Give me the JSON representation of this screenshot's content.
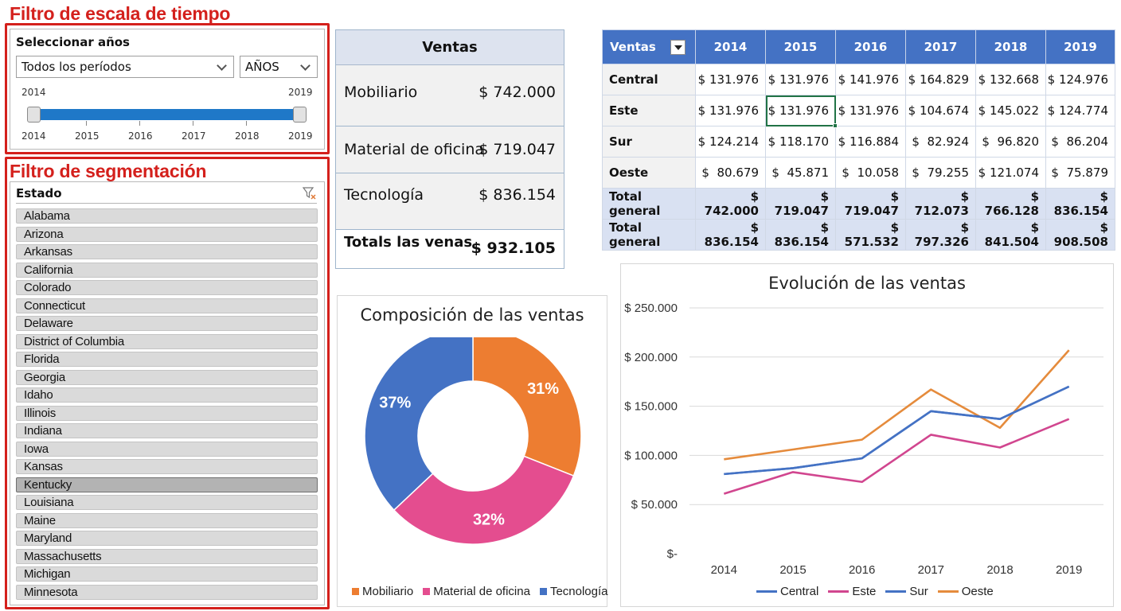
{
  "timeline": {
    "section_title": "Filtro de escala de tiempo",
    "label": "Seleccionar años",
    "period_select": "Todos los períodos",
    "unit_select": "AÑOS",
    "range_start": "2014",
    "range_end": "2019",
    "years": [
      "2014",
      "2015",
      "2016",
      "2017",
      "2018",
      "2019"
    ]
  },
  "slicer": {
    "section_title": "Filtro de segmentación",
    "header": "Estado",
    "items": [
      "Alabama",
      "Arizona",
      "Arkansas",
      "California",
      "Colorado",
      "Connecticut",
      "Delaware",
      "District of Columbia",
      "Florida",
      "Georgia",
      "Idaho",
      "Illinois",
      "Indiana",
      "Iowa",
      "Kansas",
      "Kentucky",
      "Louisiana",
      "Maine",
      "Maryland",
      "Massachusetts",
      "Michigan",
      "Minnesota"
    ],
    "selected": "Kentucky"
  },
  "ventas_panel": {
    "title": "Ventas",
    "rows": [
      {
        "label": "Mobiliario",
        "value": "$ 742.000"
      },
      {
        "label": "Material de oficina",
        "value": "$ 719.047"
      },
      {
        "label": "Tecnología",
        "value": "$ 836.154"
      }
    ],
    "total_label": "Totals las venas",
    "total_value": "$ 932.105"
  },
  "pivot": {
    "corner": "Ventas",
    "years": [
      "2014",
      "2015",
      "2016",
      "2017",
      "2018",
      "2019"
    ],
    "rows": [
      {
        "label": "Central",
        "values": [
          "$ 131.976",
          "$ 131.976",
          "$ 141.976",
          "$ 164.829",
          "$ 132.668",
          "$ 124.976"
        ]
      },
      {
        "label": "Este",
        "values": [
          "$ 131.976",
          "$ 131.976",
          "$ 131.976",
          "$ 104.674",
          "$ 145.022",
          "$ 124.774"
        ]
      },
      {
        "label": "Sur",
        "values": [
          "$ 124.214",
          "$ 118.170",
          "$ 116.884",
          "$  82.924",
          "$  96.820",
          "$  86.204"
        ]
      },
      {
        "label": "Oeste",
        "values": [
          "$  80.679",
          "$  45.871",
          "$  10.058",
          "$  79.255",
          "$ 121.074",
          "$  75.879"
        ]
      }
    ],
    "totals": [
      {
        "label": "Total general",
        "values": [
          "$ 742.000",
          "$ 719.047",
          "$ 719.047",
          "$ 712.073",
          "$ 766.128",
          "$ 836.154"
        ]
      },
      {
        "label": "Total general",
        "values": [
          "$ 836.154",
          "$ 836.154",
          "$ 571.532",
          "$ 797.326",
          "$ 841.504",
          "$ 908.508"
        ]
      }
    ]
  },
  "chart_data": [
    {
      "type": "pie",
      "title": "Composición de las ventas",
      "categories": [
        "Mobiliario",
        "Material de oficina",
        "Tecnología"
      ],
      "values": [
        31,
        32,
        37
      ],
      "labels": [
        "31%",
        "32%",
        "37%"
      ],
      "colors": [
        "#ed7d31",
        "#e44d8f",
        "#4472c4"
      ],
      "donut": true,
      "legend": "bottom"
    },
    {
      "type": "line",
      "title": "Evolución de las ventas",
      "x": [
        "2014",
        "2015",
        "2016",
        "2017",
        "2018",
        "2019"
      ],
      "ylim": [
        0,
        250000
      ],
      "yticks": [
        0,
        50000,
        100000,
        150000,
        200000,
        250000
      ],
      "ytick_labels": [
        "$-",
        "$ 50.000",
        "$ 100.000",
        "$ 150.000",
        "$ 200.000",
        "$ 250.000"
      ],
      "grid": true,
      "legend": "bottom",
      "series": [
        {
          "name": "Central",
          "color": "#4472c4",
          "values": [
            81000,
            87000,
            97000,
            145000,
            137000,
            170000
          ]
        },
        {
          "name": "Este",
          "color": "#d1468f",
          "values": [
            61000,
            83000,
            73000,
            121000,
            108000,
            137000
          ]
        },
        {
          "name": "Sur",
          "color": "#4472c4",
          "values": [
            81000,
            87000,
            97000,
            145000,
            137000,
            170000
          ]
        },
        {
          "name": "Oeste",
          "color": "#e58b3c",
          "values": [
            96000,
            106000,
            116000,
            167000,
            128000,
            207000
          ]
        }
      ]
    }
  ]
}
